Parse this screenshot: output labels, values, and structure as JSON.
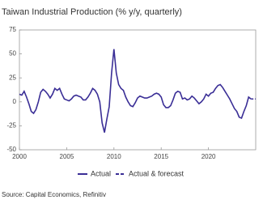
{
  "chart_data": {
    "type": "line",
    "title": "Taiwan Industrial Production (% y/y, quarterly)",
    "source": "Source: Capital Economics, Refinitiv",
    "x": [
      2000,
      2000.25,
      2000.5,
      2000.75,
      2001,
      2001.25,
      2001.5,
      2001.75,
      2002,
      2002.25,
      2002.5,
      2002.75,
      2003,
      2003.25,
      2003.5,
      2003.75,
      2004,
      2004.25,
      2004.5,
      2004.75,
      2005,
      2005.25,
      2005.5,
      2005.75,
      2006,
      2006.25,
      2006.5,
      2006.75,
      2007,
      2007.25,
      2007.5,
      2007.75,
      2008,
      2008.25,
      2008.5,
      2008.75,
      2009,
      2009.25,
      2009.5,
      2009.75,
      2010,
      2010.25,
      2010.5,
      2010.75,
      2011,
      2011.25,
      2011.5,
      2011.75,
      2012,
      2012.25,
      2012.5,
      2012.75,
      2013,
      2013.25,
      2013.5,
      2013.75,
      2014,
      2014.25,
      2014.5,
      2014.75,
      2015,
      2015.25,
      2015.5,
      2015.75,
      2016,
      2016.25,
      2016.5,
      2016.75,
      2017,
      2017.25,
      2017.5,
      2017.75,
      2018,
      2018.25,
      2018.5,
      2018.75,
      2019,
      2019.25,
      2019.5,
      2019.75,
      2020,
      2020.25,
      2020.5,
      2020.75,
      2021,
      2021.25,
      2021.5,
      2021.75,
      2022,
      2022.25,
      2022.5,
      2022.75,
      2023,
      2023.25,
      2023.5,
      2023.75,
      2024,
      2024.25,
      2024.5,
      2024.75,
      2025
    ],
    "series": [
      {
        "name": "Actual",
        "color": "#3a2e96",
        "dashed": false,
        "values": [
          8,
          7,
          11,
          5,
          -2,
          -10,
          -12,
          -8,
          0,
          10,
          13,
          11,
          8,
          4,
          8,
          14,
          12,
          14,
          8,
          3,
          2,
          1,
          3,
          6,
          7,
          6,
          5,
          2,
          2,
          5,
          9,
          14,
          12,
          8,
          0,
          -22,
          -32,
          -18,
          -5,
          30,
          55,
          30,
          18,
          14,
          12,
          5,
          0,
          -4,
          -5,
          -1,
          4,
          6,
          5,
          4,
          4,
          5,
          6,
          8,
          9,
          8,
          5,
          -3,
          -6,
          -6,
          -4,
          2,
          9,
          11,
          10,
          3,
          4,
          2,
          3,
          6,
          4,
          1,
          -2,
          0,
          3,
          8,
          6,
          9,
          10,
          14,
          17,
          18,
          15,
          11,
          7,
          3,
          -2,
          -7,
          -10,
          -16,
          -17,
          -10,
          -4,
          5,
          3,
          null,
          null
        ]
      },
      {
        "name": "Actual & forecast",
        "color": "#3a2e96",
        "dashed": true,
        "values": [
          null,
          null,
          null,
          null,
          null,
          null,
          null,
          null,
          null,
          null,
          null,
          null,
          null,
          null,
          null,
          null,
          null,
          null,
          null,
          null,
          null,
          null,
          null,
          null,
          null,
          null,
          null,
          null,
          null,
          null,
          null,
          null,
          null,
          null,
          null,
          null,
          null,
          null,
          null,
          null,
          null,
          null,
          null,
          null,
          null,
          null,
          null,
          null,
          null,
          null,
          null,
          null,
          null,
          null,
          null,
          null,
          null,
          null,
          null,
          null,
          null,
          null,
          null,
          null,
          null,
          null,
          null,
          null,
          null,
          null,
          null,
          null,
          null,
          null,
          null,
          null,
          null,
          null,
          null,
          null,
          null,
          null,
          null,
          null,
          null,
          null,
          null,
          null,
          null,
          null,
          null,
          null,
          null,
          null,
          null,
          null,
          null,
          null,
          3,
          3,
          3
        ]
      }
    ],
    "xlim": [
      2000,
      2025
    ],
    "xticks": [
      2000,
      2005,
      2010,
      2015,
      2020
    ],
    "ylim": [
      -50,
      75
    ],
    "yticks": [
      -50,
      -25,
      0,
      25,
      50,
      75
    ]
  }
}
